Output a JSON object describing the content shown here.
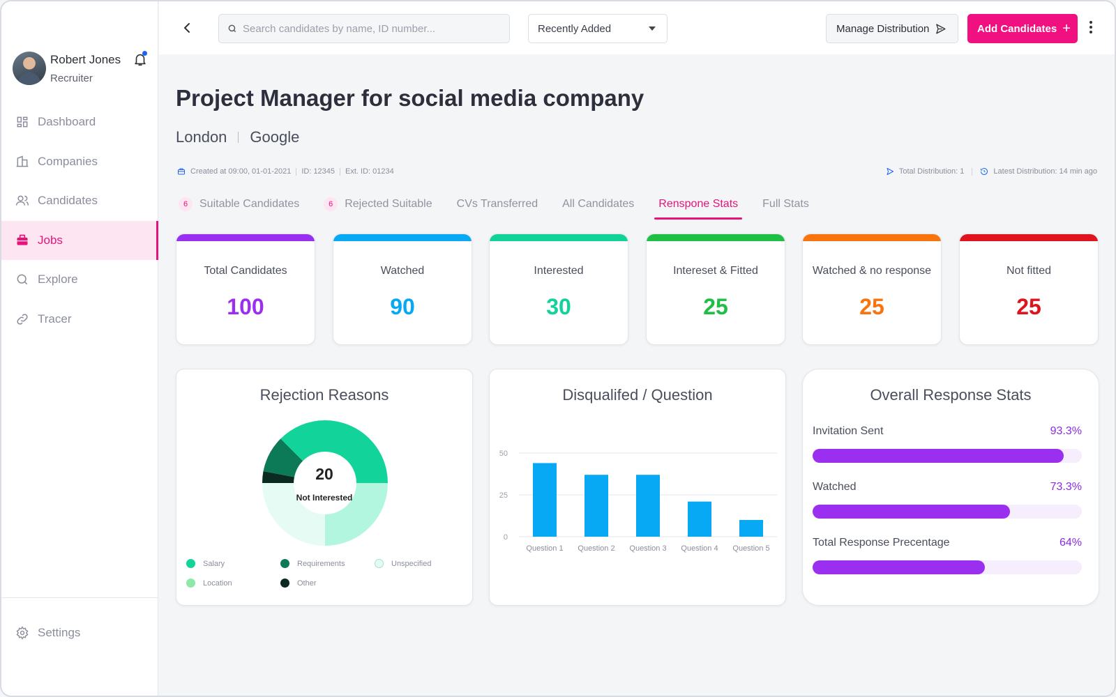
{
  "user": {
    "name": "Robert Jones",
    "role": "Recruiter"
  },
  "nav": {
    "items": [
      {
        "label": "Dashboard",
        "icon": "dashboard-icon"
      },
      {
        "label": "Companies",
        "icon": "building-icon"
      },
      {
        "label": "Candidates",
        "icon": "users-icon"
      },
      {
        "label": "Jobs",
        "icon": "briefcase-icon",
        "active": true
      },
      {
        "label": "Explore",
        "icon": "search-icon"
      },
      {
        "label": "Tracer",
        "icon": "link-icon"
      }
    ],
    "settings": "Settings"
  },
  "topbar": {
    "search_placeholder": "Search candidates by name, ID number...",
    "sort_value": "Recently Added",
    "manage_label": "Manage Distribution",
    "add_label": "Add Candidates"
  },
  "job": {
    "title": "Project Manager for social media company",
    "location": "London",
    "company": "Google",
    "created": "Created at 09:00, 01-01-2021",
    "id": "ID: 12345",
    "ext_id": "Ext. ID: 01234",
    "total_distribution": "Total Distribution: 1",
    "latest_distribution": "Latest Distribution: 14 min ago"
  },
  "tabs": [
    {
      "label": "Suitable Candidates",
      "count": "6"
    },
    {
      "label": "Rejected Suitable",
      "count": "6"
    },
    {
      "label": "CVs Transferred"
    },
    {
      "label": "All Candidates"
    },
    {
      "label": "Renspone Stats",
      "active": true
    },
    {
      "label": "Full Stats"
    }
  ],
  "stats": [
    {
      "label": "Total Candidates",
      "value": "100",
      "color": "#9b2ff0"
    },
    {
      "label": "Watched",
      "value": "90",
      "color": "#07a9f5"
    },
    {
      "label": "Interested",
      "value": "30",
      "color": "#11d39a"
    },
    {
      "label": "Intereset & Fitted",
      "value": "25",
      "color": "#1fbe45"
    },
    {
      "label": "Watched & no response",
      "value": "25",
      "color": "#f8740e"
    },
    {
      "label": "Not fitted",
      "value": "25",
      "color": "#e0141f"
    }
  ],
  "rejection": {
    "title": "Rejection Reasons",
    "center_value": "20",
    "center_label": "Not Interested",
    "legend": [
      {
        "label": "Salary",
        "color": "#12d49b"
      },
      {
        "label": "Requirements",
        "color": "#0c7a57"
      },
      {
        "label": "Unspecified",
        "color": "#e6fbf4"
      },
      {
        "label": "Location",
        "color": "#8ee9a8"
      },
      {
        "label": "Other",
        "color": "#0b2a22"
      }
    ]
  },
  "chart_data": {
    "type": "bar",
    "title": "Disqualifed / Question",
    "categories": [
      "Question 1",
      "Question 2",
      "Question 3",
      "Question 4",
      "Question 5"
    ],
    "values": [
      44,
      37,
      37,
      21,
      10
    ],
    "yticks": [
      "0",
      "25",
      "50"
    ],
    "ylim": [
      0,
      50
    ],
    "color": "#07a9f5",
    "grid": true
  },
  "overall": {
    "title": "Overall Response Stats",
    "rows": [
      {
        "label": "Invitation Sent",
        "value": "93.3%",
        "pct": 93.3
      },
      {
        "label": "Watched",
        "value": "73.3%",
        "pct": 73.3
      },
      {
        "label": "Total Response Precentage",
        "value": "64%",
        "pct": 64
      }
    ]
  }
}
